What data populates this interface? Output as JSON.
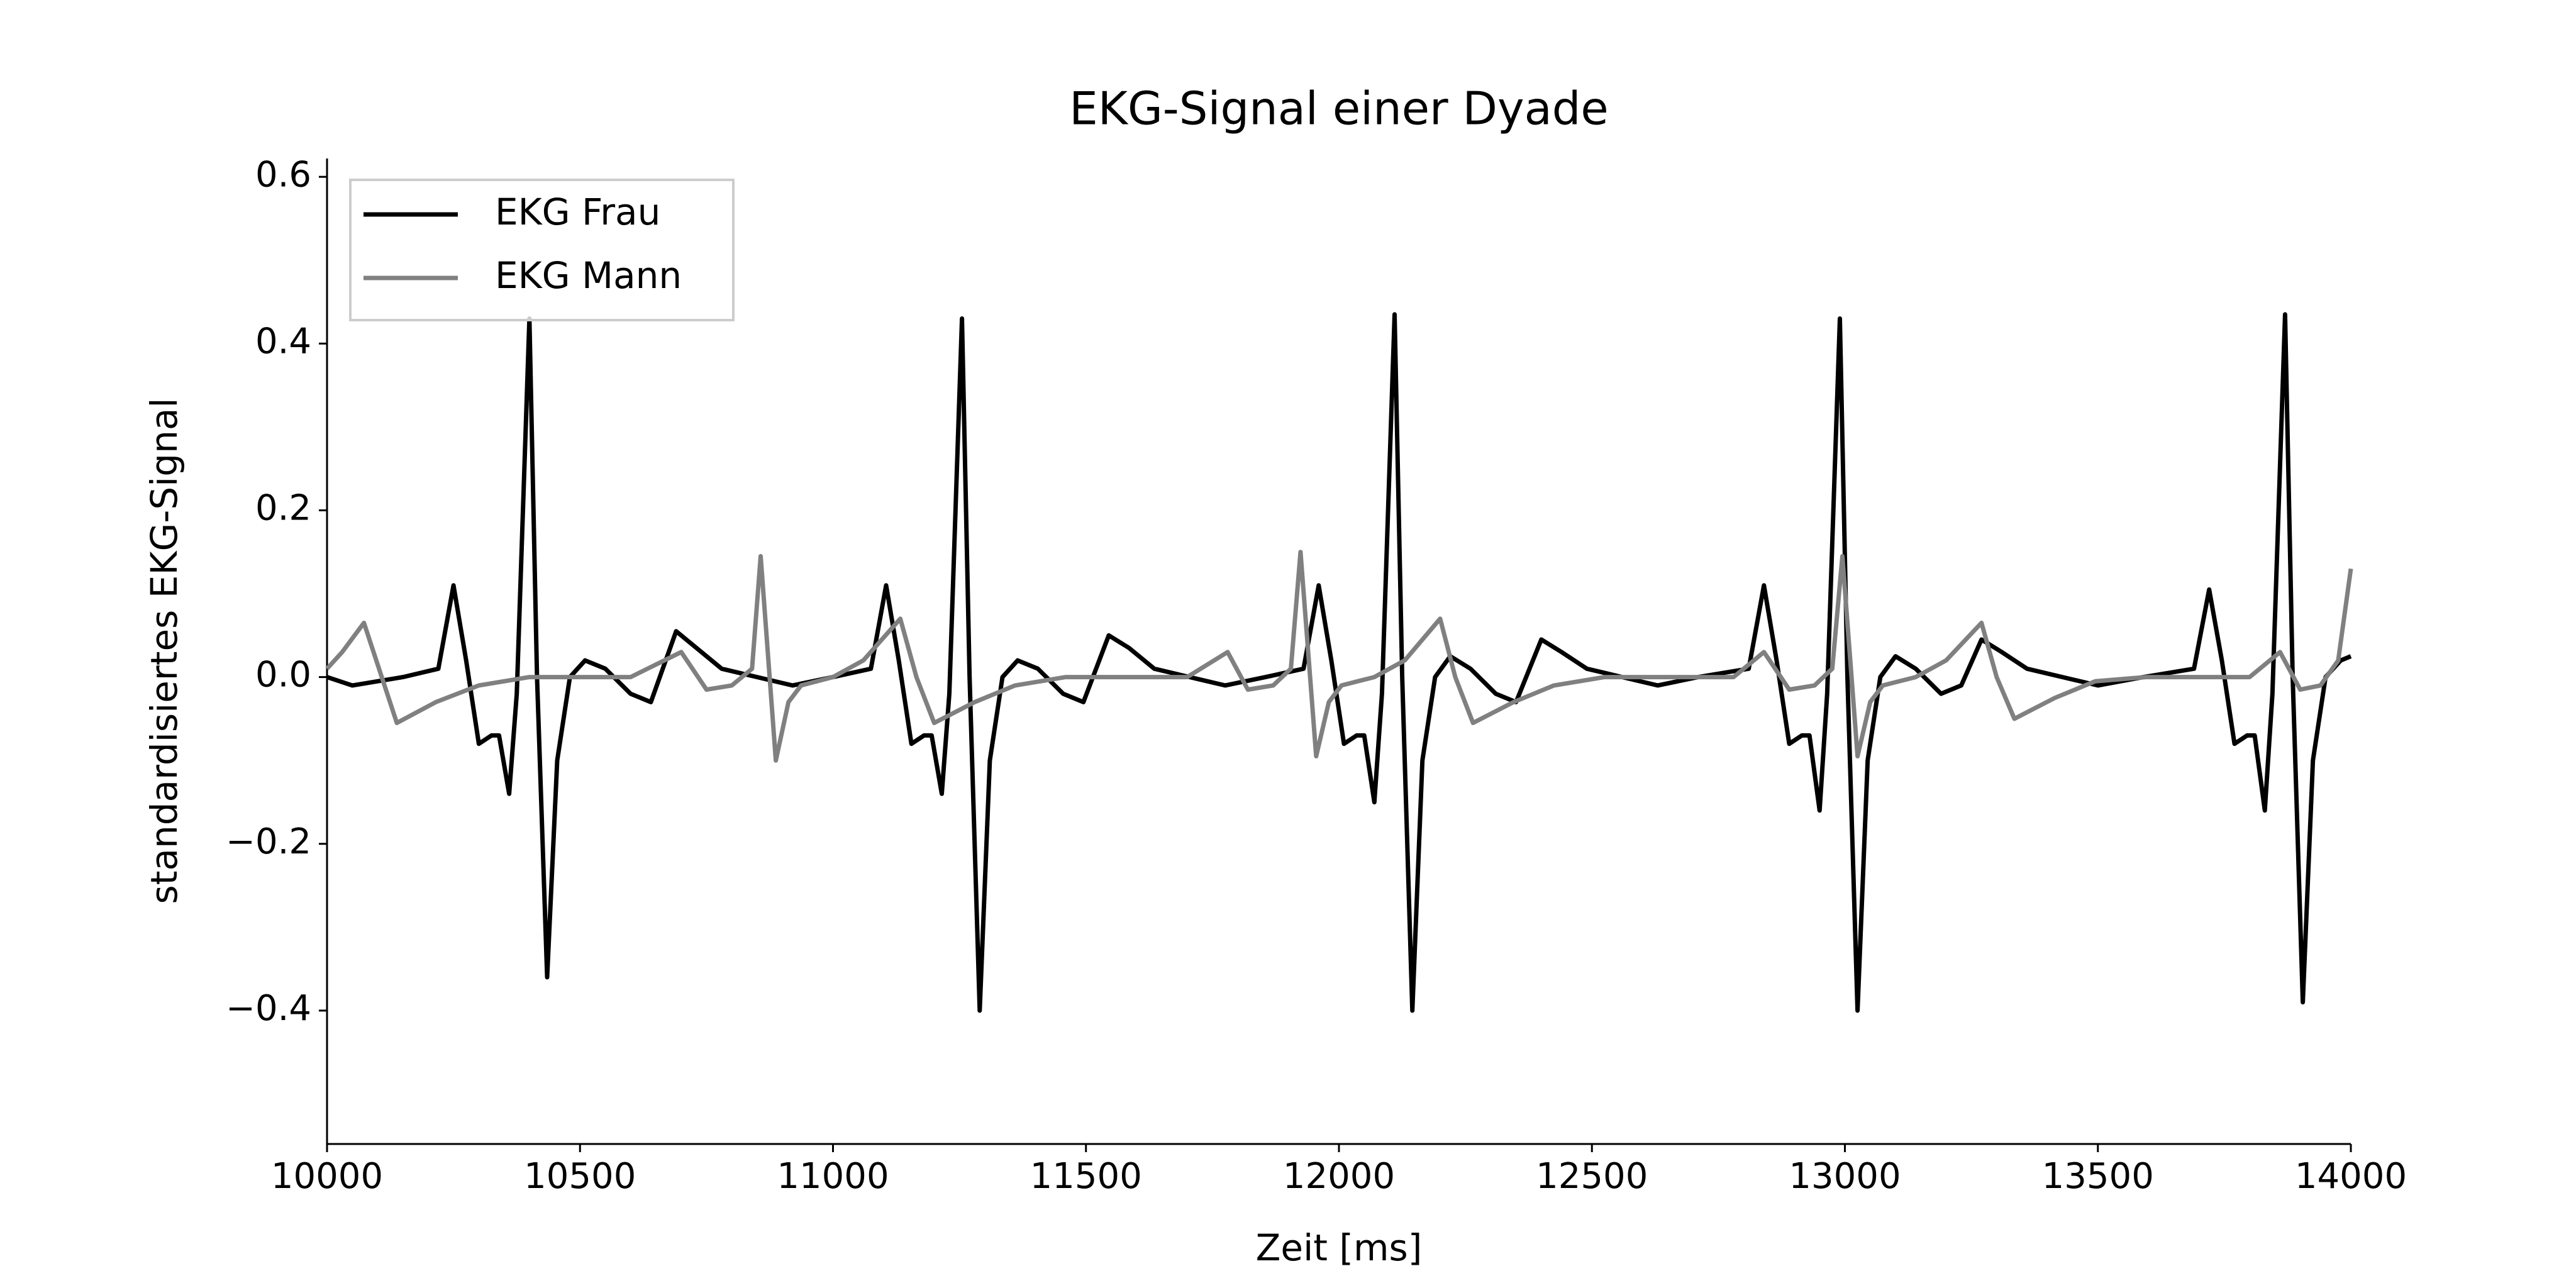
{
  "chart_data": {
    "type": "line",
    "title": "EKG-Signal einer Dyade",
    "xlabel": "Zeit [ms]",
    "ylabel": "standardisiertes EKG-Signal",
    "xlim": [
      10000,
      14000
    ],
    "xticks": [
      10000,
      10500,
      11000,
      11500,
      12000,
      12500,
      13000,
      13500,
      14000
    ],
    "ylim": [
      -0.56,
      0.622
    ],
    "yticks": [
      {
        "value": -0.4,
        "label": "−0.4"
      },
      {
        "value": -0.2,
        "label": "−0.2"
      },
      {
        "value": 0,
        "label": "0.0"
      },
      0.2,
      0.4,
      0.6
    ],
    "legend": "upper left",
    "series": [
      {
        "name": "EKG Frau",
        "color": "#000000",
        "x": [
          10000,
          10050,
          10150,
          10220,
          10250,
          10275,
          10300,
          10325,
          10340,
          10360,
          10375,
          10400,
          10415,
          10435,
          10455,
          10480,
          10510,
          10550,
          10600,
          10640,
          10690,
          10730,
          10780,
          10850,
          10920,
          11000,
          11075,
          11105,
          11130,
          11155,
          11180,
          11195,
          11215,
          11230,
          11255,
          11270,
          11290,
          11310,
          11335,
          11365,
          11405,
          11455,
          11495,
          11545,
          11585,
          11635,
          11705,
          11775,
          11855,
          11930,
          11960,
          11985,
          12010,
          12035,
          12050,
          12070,
          12085,
          12110,
          12125,
          12145,
          12165,
          12190,
          12220,
          12260,
          12310,
          12350,
          12400,
          12440,
          12490,
          12560,
          12630,
          12710,
          12810,
          12840,
          12865,
          12890,
          12915,
          12930,
          12950,
          12965,
          12990,
          13005,
          13025,
          13045,
          13070,
          13100,
          13140,
          13190,
          13230,
          13270,
          13310,
          13360,
          13430,
          13500,
          13590,
          13690,
          13720,
          13745,
          13770,
          13795,
          13810,
          13830,
          13845,
          13870,
          13885,
          13905,
          13925,
          13950,
          13980,
          14000
        ],
        "values": [
          0,
          -0.01,
          0,
          0.01,
          0.11,
          0.02,
          -0.08,
          -0.07,
          -0.07,
          -0.14,
          -0.02,
          0.43,
          0,
          -0.36,
          -0.1,
          0,
          0.02,
          0.01,
          -0.02,
          -0.03,
          0.055,
          0.035,
          0.01,
          0,
          -0.01,
          0,
          0.01,
          0.11,
          0.02,
          -0.08,
          -0.07,
          -0.07,
          -0.14,
          -0.02,
          0.43,
          0,
          -0.4,
          -0.1,
          0,
          0.02,
          0.01,
          -0.02,
          -0.03,
          0.05,
          0.035,
          0.01,
          0,
          -0.01,
          0,
          0.01,
          0.11,
          0.02,
          -0.08,
          -0.07,
          -0.07,
          -0.15,
          -0.02,
          0.435,
          0,
          -0.4,
          -0.1,
          0,
          0.025,
          0.01,
          -0.02,
          -0.03,
          0.045,
          0.03,
          0.01,
          0,
          -0.01,
          0,
          0.01,
          0.11,
          0.02,
          -0.08,
          -0.07,
          -0.07,
          -0.16,
          -0.02,
          0.43,
          0,
          -0.4,
          -0.1,
          0,
          0.025,
          0.01,
          -0.02,
          -0.01,
          0.045,
          0.03,
          0.01,
          0,
          -0.01,
          0,
          0.01,
          0.105,
          0.02,
          -0.08,
          -0.07,
          -0.07,
          -0.16,
          -0.02,
          0.435,
          0,
          -0.39,
          -0.1,
          0,
          0.02,
          0.025
        ]
      },
      {
        "name": "EKG Mann",
        "color": "#808080",
        "x": [
          10000,
          10030,
          10073,
          10138,
          10215,
          10300,
          10400,
          10600,
          10700,
          10750,
          10800,
          10840,
          10857,
          10887,
          10912,
          10937,
          11000,
          11060,
          11133,
          11165,
          11200,
          11280,
          11360,
          11460,
          11700,
          11780,
          11820,
          11870,
          11905,
          11924,
          11955,
          11980,
          12005,
          12070,
          12130,
          12200,
          12230,
          12265,
          12345,
          12425,
          12525,
          12780,
          12840,
          12890,
          12940,
          12975,
          12995,
          13025,
          13050,
          13075,
          13140,
          13200,
          13270,
          13300,
          13335,
          13415,
          13495,
          13595,
          13800,
          13860,
          13900,
          13940,
          13975,
          14000
        ],
        "values": [
          0.01,
          0.03,
          0.065,
          -0.055,
          -0.03,
          -0.01,
          0,
          0,
          0.03,
          -0.015,
          -0.01,
          0.01,
          0.145,
          -0.1,
          -0.03,
          -0.01,
          0,
          0.02,
          0.07,
          0,
          -0.055,
          -0.03,
          -0.01,
          0,
          0,
          0.03,
          -0.015,
          -0.01,
          0.01,
          0.15,
          -0.095,
          -0.03,
          -0.01,
          0,
          0.02,
          0.07,
          0,
          -0.055,
          -0.03,
          -0.01,
          0,
          0,
          0.03,
          -0.015,
          -0.01,
          0.01,
          0.145,
          -0.095,
          -0.03,
          -0.01,
          0,
          0.02,
          0.065,
          0,
          -0.05,
          -0.025,
          -0.005,
          0,
          0,
          0.03,
          -0.015,
          -0.01,
          0.02,
          0.13
        ]
      }
    ]
  }
}
